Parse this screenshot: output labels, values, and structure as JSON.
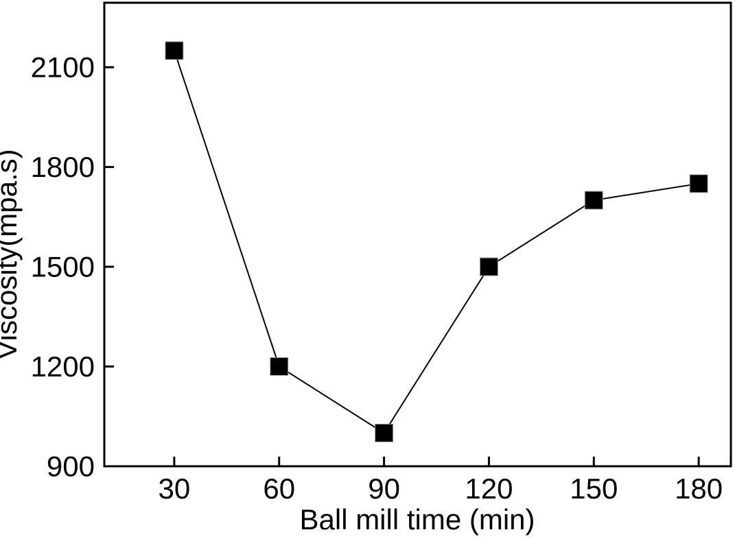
{
  "chart_data": {
    "type": "line",
    "title": "",
    "xlabel": "Ball mill time (min)",
    "ylabel": "Viscosity(mpa.s)",
    "x": [
      30,
      60,
      90,
      120,
      150,
      180
    ],
    "series": [
      {
        "name": "viscosity",
        "values": [
          2150,
          1200,
          1000,
          1500,
          1700,
          1750
        ]
      }
    ],
    "xticks": [
      30,
      60,
      90,
      120,
      150,
      180
    ],
    "yticks": [
      900,
      1200,
      1500,
      1800,
      2100
    ],
    "xlim": [
      10,
      189.2
    ],
    "ylim": [
      900,
      2294
    ],
    "grid": false,
    "legend_position": "none",
    "marker": "square",
    "marker_size": 26,
    "colors": {
      "line": "#000000",
      "marker_fill": "#000000",
      "marker_edge": "#a0a0a0",
      "axis": "#000000",
      "text": "#000000",
      "background": "#ffffff"
    }
  }
}
